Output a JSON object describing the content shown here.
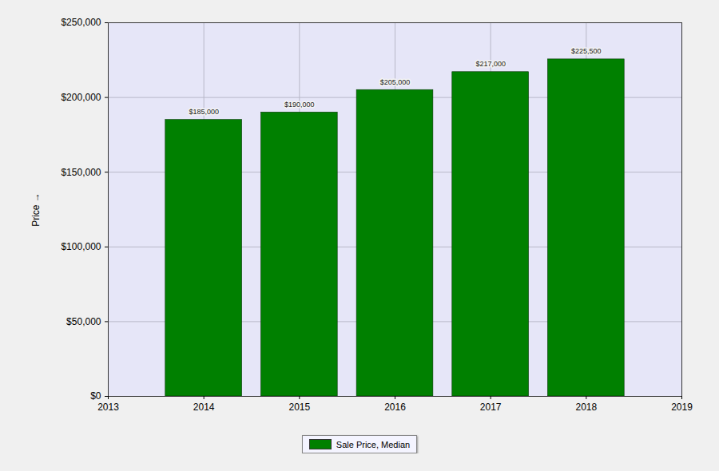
{
  "chart_data": {
    "type": "bar",
    "y_label": "Price",
    "x": [
      2014,
      2015,
      2016,
      2017,
      2018
    ],
    "series": [
      {
        "name": "Sale Price, Median",
        "color": "#008000",
        "values": [
          185000,
          190000,
          205000,
          217000,
          225500
        ],
        "value_labels": [
          "$185,000",
          "$190,000",
          "$205,000",
          "$217,000",
          "$225,500"
        ]
      }
    ],
    "xlim": [
      2013,
      2019
    ],
    "xticks": [
      2013,
      2014,
      2015,
      2016,
      2017,
      2018,
      2019
    ],
    "ylim": [
      0,
      250000
    ],
    "yticks": [
      {
        "value": 0,
        "label": "$0"
      },
      {
        "value": 50000,
        "label": "$50,000"
      },
      {
        "value": 100000,
        "label": "$100,000"
      },
      {
        "value": 150000,
        "label": "$150,000"
      },
      {
        "value": 200000,
        "label": "$200,000"
      },
      {
        "value": 250000,
        "label": "$250,000"
      }
    ],
    "grid": true,
    "data_labels": true,
    "legend": "bottom"
  }
}
